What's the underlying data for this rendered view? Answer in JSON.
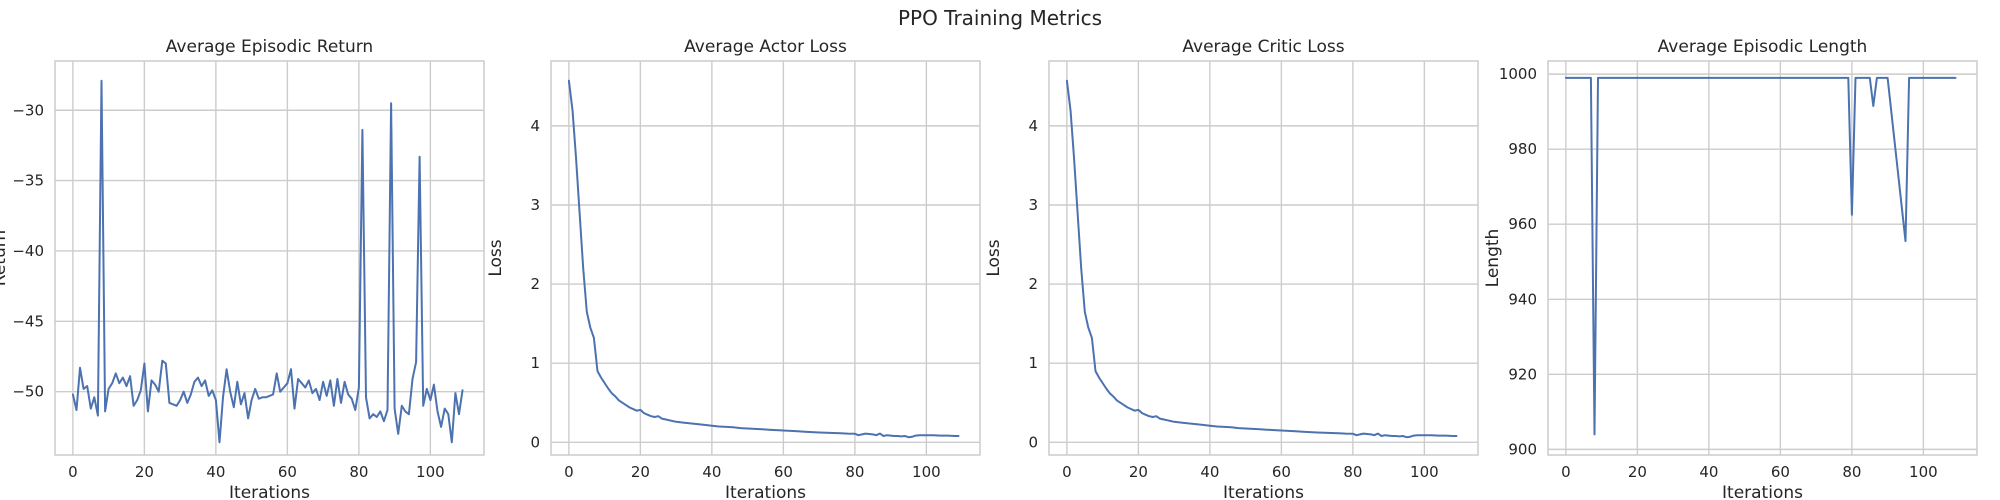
{
  "figure": {
    "title": "PPO Training Metrics",
    "line_color": "#4c72b0",
    "grid_color": "#cccccc"
  },
  "chart_data": [
    {
      "type": "line",
      "title": "Average Episodic Return",
      "xlabel": "Iterations",
      "ylabel": "Return",
      "xlim": [
        -5,
        115
      ],
      "ylim": [
        -54.5,
        -26.5
      ],
      "xticks": [
        0,
        20,
        40,
        60,
        80,
        100
      ],
      "yticks": [
        -50,
        -45,
        -40,
        -35,
        -30
      ],
      "grid": true,
      "series": [
        {
          "x": [
            0,
            1,
            2,
            3,
            4,
            5,
            6,
            7,
            8,
            9,
            10,
            11,
            12,
            13,
            14,
            15,
            16,
            17,
            18,
            19,
            20,
            21,
            22,
            23,
            24,
            25,
            26,
            27,
            28,
            29,
            30,
            31,
            32,
            33,
            34,
            35,
            36,
            37,
            38,
            39,
            40,
            41,
            42,
            43,
            44,
            45,
            46,
            47,
            48,
            49,
            50,
            51,
            52,
            53,
            54,
            55,
            56,
            57,
            58,
            59,
            60,
            61,
            62,
            63,
            64,
            65,
            66,
            67,
            68,
            69,
            70,
            71,
            72,
            73,
            74,
            75,
            76,
            77,
            78,
            79,
            80,
            81,
            82,
            83,
            84,
            85,
            86,
            87,
            88,
            89,
            90,
            91,
            92,
            93,
            94,
            95,
            96,
            97,
            98,
            99,
            100,
            101,
            102,
            103,
            104,
            105,
            106,
            107,
            108,
            109
          ],
          "y": [
            -50.2,
            -51.3,
            -48.3,
            -49.8,
            -49.6,
            -51.2,
            -50.4,
            -51.7,
            -27.9,
            -51.4,
            -49.8,
            -49.4,
            -48.7,
            -49.4,
            -49.0,
            -49.6,
            -48.9,
            -51.0,
            -50.6,
            -49.9,
            -48.0,
            -51.4,
            -49.2,
            -49.5,
            -50.0,
            -47.8,
            -48.0,
            -50.8,
            -50.9,
            -51.0,
            -50.6,
            -50.0,
            -50.8,
            -50.2,
            -49.3,
            -49.0,
            -49.6,
            -49.2,
            -50.3,
            -49.9,
            -50.6,
            -53.6,
            -50.4,
            -48.4,
            -50.0,
            -51.1,
            -49.3,
            -50.9,
            -50.1,
            -51.9,
            -50.6,
            -49.8,
            -50.5,
            -50.4,
            -50.4,
            -50.3,
            -50.2,
            -48.7,
            -50.0,
            -49.7,
            -49.4,
            -48.4,
            -51.2,
            -49.1,
            -49.4,
            -49.7,
            -49.2,
            -50.1,
            -49.8,
            -50.6,
            -49.3,
            -50.3,
            -49.2,
            -51.0,
            -49.1,
            -50.8,
            -49.3,
            -50.2,
            -50.5,
            -51.3,
            -49.7,
            -31.4,
            -50.4,
            -51.9,
            -51.6,
            -51.8,
            -51.4,
            -52.1,
            -51.3,
            -29.5,
            -51.2,
            -53.0,
            -51.0,
            -51.4,
            -51.6,
            -49.1,
            -47.9,
            -33.3,
            -51.0,
            -49.8,
            -50.6,
            -49.5,
            -51.4,
            -52.5,
            -51.2,
            -51.6,
            -53.6,
            -50.1,
            -51.6,
            -49.9
          ]
        }
      ]
    },
    {
      "type": "line",
      "title": "Average Actor Loss",
      "xlabel": "Iterations",
      "ylabel": "Loss",
      "xlim": [
        -5,
        115
      ],
      "ylim": [
        -0.16,
        4.82
      ],
      "xticks": [
        0,
        20,
        40,
        60,
        80,
        100
      ],
      "yticks": [
        0,
        1,
        2,
        3,
        4
      ],
      "grid": true,
      "series": [
        {
          "x": [
            0,
            1,
            2,
            3,
            4,
            5,
            6,
            7,
            8,
            9,
            10,
            11,
            12,
            13,
            14,
            15,
            16,
            17,
            18,
            19,
            20,
            21,
            22,
            23,
            24,
            25,
            26,
            27,
            28,
            29,
            30,
            32,
            34,
            36,
            38,
            40,
            42,
            44,
            46,
            48,
            50,
            52,
            54,
            56,
            58,
            60,
            62,
            64,
            66,
            68,
            70,
            72,
            74,
            76,
            78,
            80,
            81,
            82,
            83,
            84,
            85,
            86,
            87,
            88,
            89,
            90,
            91,
            92,
            93,
            94,
            95,
            96,
            97,
            98,
            100,
            102,
            104,
            106,
            108,
            109
          ],
          "y": [
            4.57,
            4.2,
            3.6,
            2.9,
            2.2,
            1.65,
            1.45,
            1.32,
            0.9,
            0.82,
            0.75,
            0.68,
            0.62,
            0.58,
            0.53,
            0.5,
            0.47,
            0.44,
            0.42,
            0.4,
            0.41,
            0.37,
            0.35,
            0.33,
            0.32,
            0.33,
            0.3,
            0.29,
            0.28,
            0.27,
            0.26,
            0.25,
            0.24,
            0.23,
            0.22,
            0.21,
            0.2,
            0.195,
            0.19,
            0.18,
            0.175,
            0.17,
            0.165,
            0.16,
            0.155,
            0.15,
            0.145,
            0.14,
            0.135,
            0.13,
            0.125,
            0.12,
            0.118,
            0.115,
            0.11,
            0.108,
            0.09,
            0.1,
            0.11,
            0.105,
            0.1,
            0.09,
            0.11,
            0.08,
            0.09,
            0.085,
            0.08,
            0.08,
            0.075,
            0.08,
            0.065,
            0.07,
            0.085,
            0.09,
            0.09,
            0.09,
            0.085,
            0.085,
            0.08,
            0.08
          ]
        }
      ]
    },
    {
      "type": "line",
      "title": "Average Critic Loss",
      "xlabel": "Iterations",
      "ylabel": "Loss",
      "xlim": [
        -5,
        115
      ],
      "ylim": [
        -0.16,
        4.82
      ],
      "xticks": [
        0,
        20,
        40,
        60,
        80,
        100
      ],
      "yticks": [
        0,
        1,
        2,
        3,
        4
      ],
      "grid": true,
      "series": [
        {
          "x": [
            0,
            1,
            2,
            3,
            4,
            5,
            6,
            7,
            8,
            9,
            10,
            11,
            12,
            13,
            14,
            15,
            16,
            17,
            18,
            19,
            20,
            21,
            22,
            23,
            24,
            25,
            26,
            27,
            28,
            29,
            30,
            32,
            34,
            36,
            38,
            40,
            42,
            44,
            46,
            48,
            50,
            52,
            54,
            56,
            58,
            60,
            62,
            64,
            66,
            68,
            70,
            72,
            74,
            76,
            78,
            80,
            81,
            82,
            83,
            84,
            85,
            86,
            87,
            88,
            89,
            90,
            91,
            92,
            93,
            94,
            95,
            96,
            97,
            98,
            100,
            102,
            104,
            106,
            108,
            109
          ],
          "y": [
            4.57,
            4.2,
            3.6,
            2.9,
            2.2,
            1.65,
            1.45,
            1.32,
            0.9,
            0.82,
            0.75,
            0.68,
            0.62,
            0.58,
            0.53,
            0.5,
            0.47,
            0.44,
            0.42,
            0.4,
            0.41,
            0.37,
            0.35,
            0.33,
            0.32,
            0.33,
            0.3,
            0.29,
            0.28,
            0.27,
            0.26,
            0.25,
            0.24,
            0.23,
            0.22,
            0.21,
            0.2,
            0.195,
            0.19,
            0.18,
            0.175,
            0.17,
            0.165,
            0.16,
            0.155,
            0.15,
            0.145,
            0.14,
            0.135,
            0.13,
            0.125,
            0.12,
            0.118,
            0.115,
            0.11,
            0.108,
            0.09,
            0.1,
            0.11,
            0.105,
            0.1,
            0.09,
            0.11,
            0.08,
            0.09,
            0.085,
            0.08,
            0.08,
            0.075,
            0.08,
            0.065,
            0.07,
            0.085,
            0.09,
            0.09,
            0.09,
            0.085,
            0.085,
            0.08,
            0.08
          ]
        }
      ]
    },
    {
      "type": "line",
      "title": "Average Episodic Length",
      "xlabel": "Iterations",
      "ylabel": "Length",
      "xlim": [
        -5,
        115
      ],
      "ylim": [
        898.5,
        1003.5
      ],
      "xticks": [
        0,
        20,
        40,
        60,
        80,
        100
      ],
      "yticks": [
        900,
        920,
        940,
        960,
        980,
        1000
      ],
      "grid": true,
      "series": [
        {
          "x": [
            0,
            7,
            8,
            9,
            79,
            80,
            81,
            85,
            86,
            87,
            90,
            95,
            96,
            97,
            100,
            109
          ],
          "y": [
            999,
            999,
            904,
            999,
            999,
            962.5,
            999,
            999,
            991.5,
            999,
            999,
            955.5,
            999,
            999,
            999,
            999
          ]
        }
      ]
    }
  ]
}
